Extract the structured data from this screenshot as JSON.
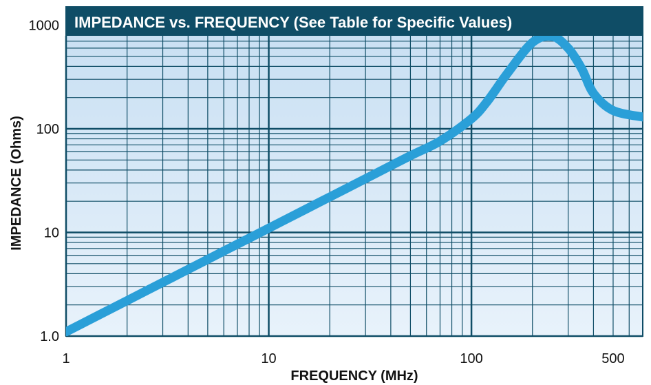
{
  "chart_data": {
    "type": "line",
    "title": "IMPEDANCE vs. FREQUENCY (See Table for Specific Values)",
    "xlabel": "FREQUENCY (MHz)",
    "ylabel": "IMPEDANCE (Ohms)",
    "xscale": "log",
    "yscale": "log",
    "xlim": [
      1,
      700
    ],
    "ylim": [
      1,
      1500
    ],
    "x_ticks": [
      {
        "value": 1,
        "label": "1"
      },
      {
        "value": 10,
        "label": "10"
      },
      {
        "value": 100,
        "label": "100"
      },
      {
        "value": 500,
        "label": "500"
      }
    ],
    "y_ticks": [
      {
        "value": 1,
        "label": "1.0"
      },
      {
        "value": 10,
        "label": "10"
      },
      {
        "value": 100,
        "label": "100"
      },
      {
        "value": 1000,
        "label": "1000"
      }
    ],
    "grid": true,
    "colors": {
      "plot_background": "#d7e9f7",
      "grid": "#0f4d66",
      "curve": "#2a9fd8",
      "title_bar": "#0f4d66",
      "title_text": "#ffffff"
    },
    "series": [
      {
        "x": [
          1,
          2,
          3,
          5,
          7,
          10,
          15,
          20,
          30,
          50,
          70,
          100,
          120,
          150,
          200,
          250,
          300,
          350,
          400,
          500,
          700
        ],
        "y": [
          1.1,
          2.2,
          3.3,
          5.5,
          7.7,
          11,
          16.5,
          22,
          33,
          55,
          76,
          125,
          185,
          340,
          680,
          780,
          600,
          380,
          220,
          150,
          130
        ]
      }
    ]
  }
}
